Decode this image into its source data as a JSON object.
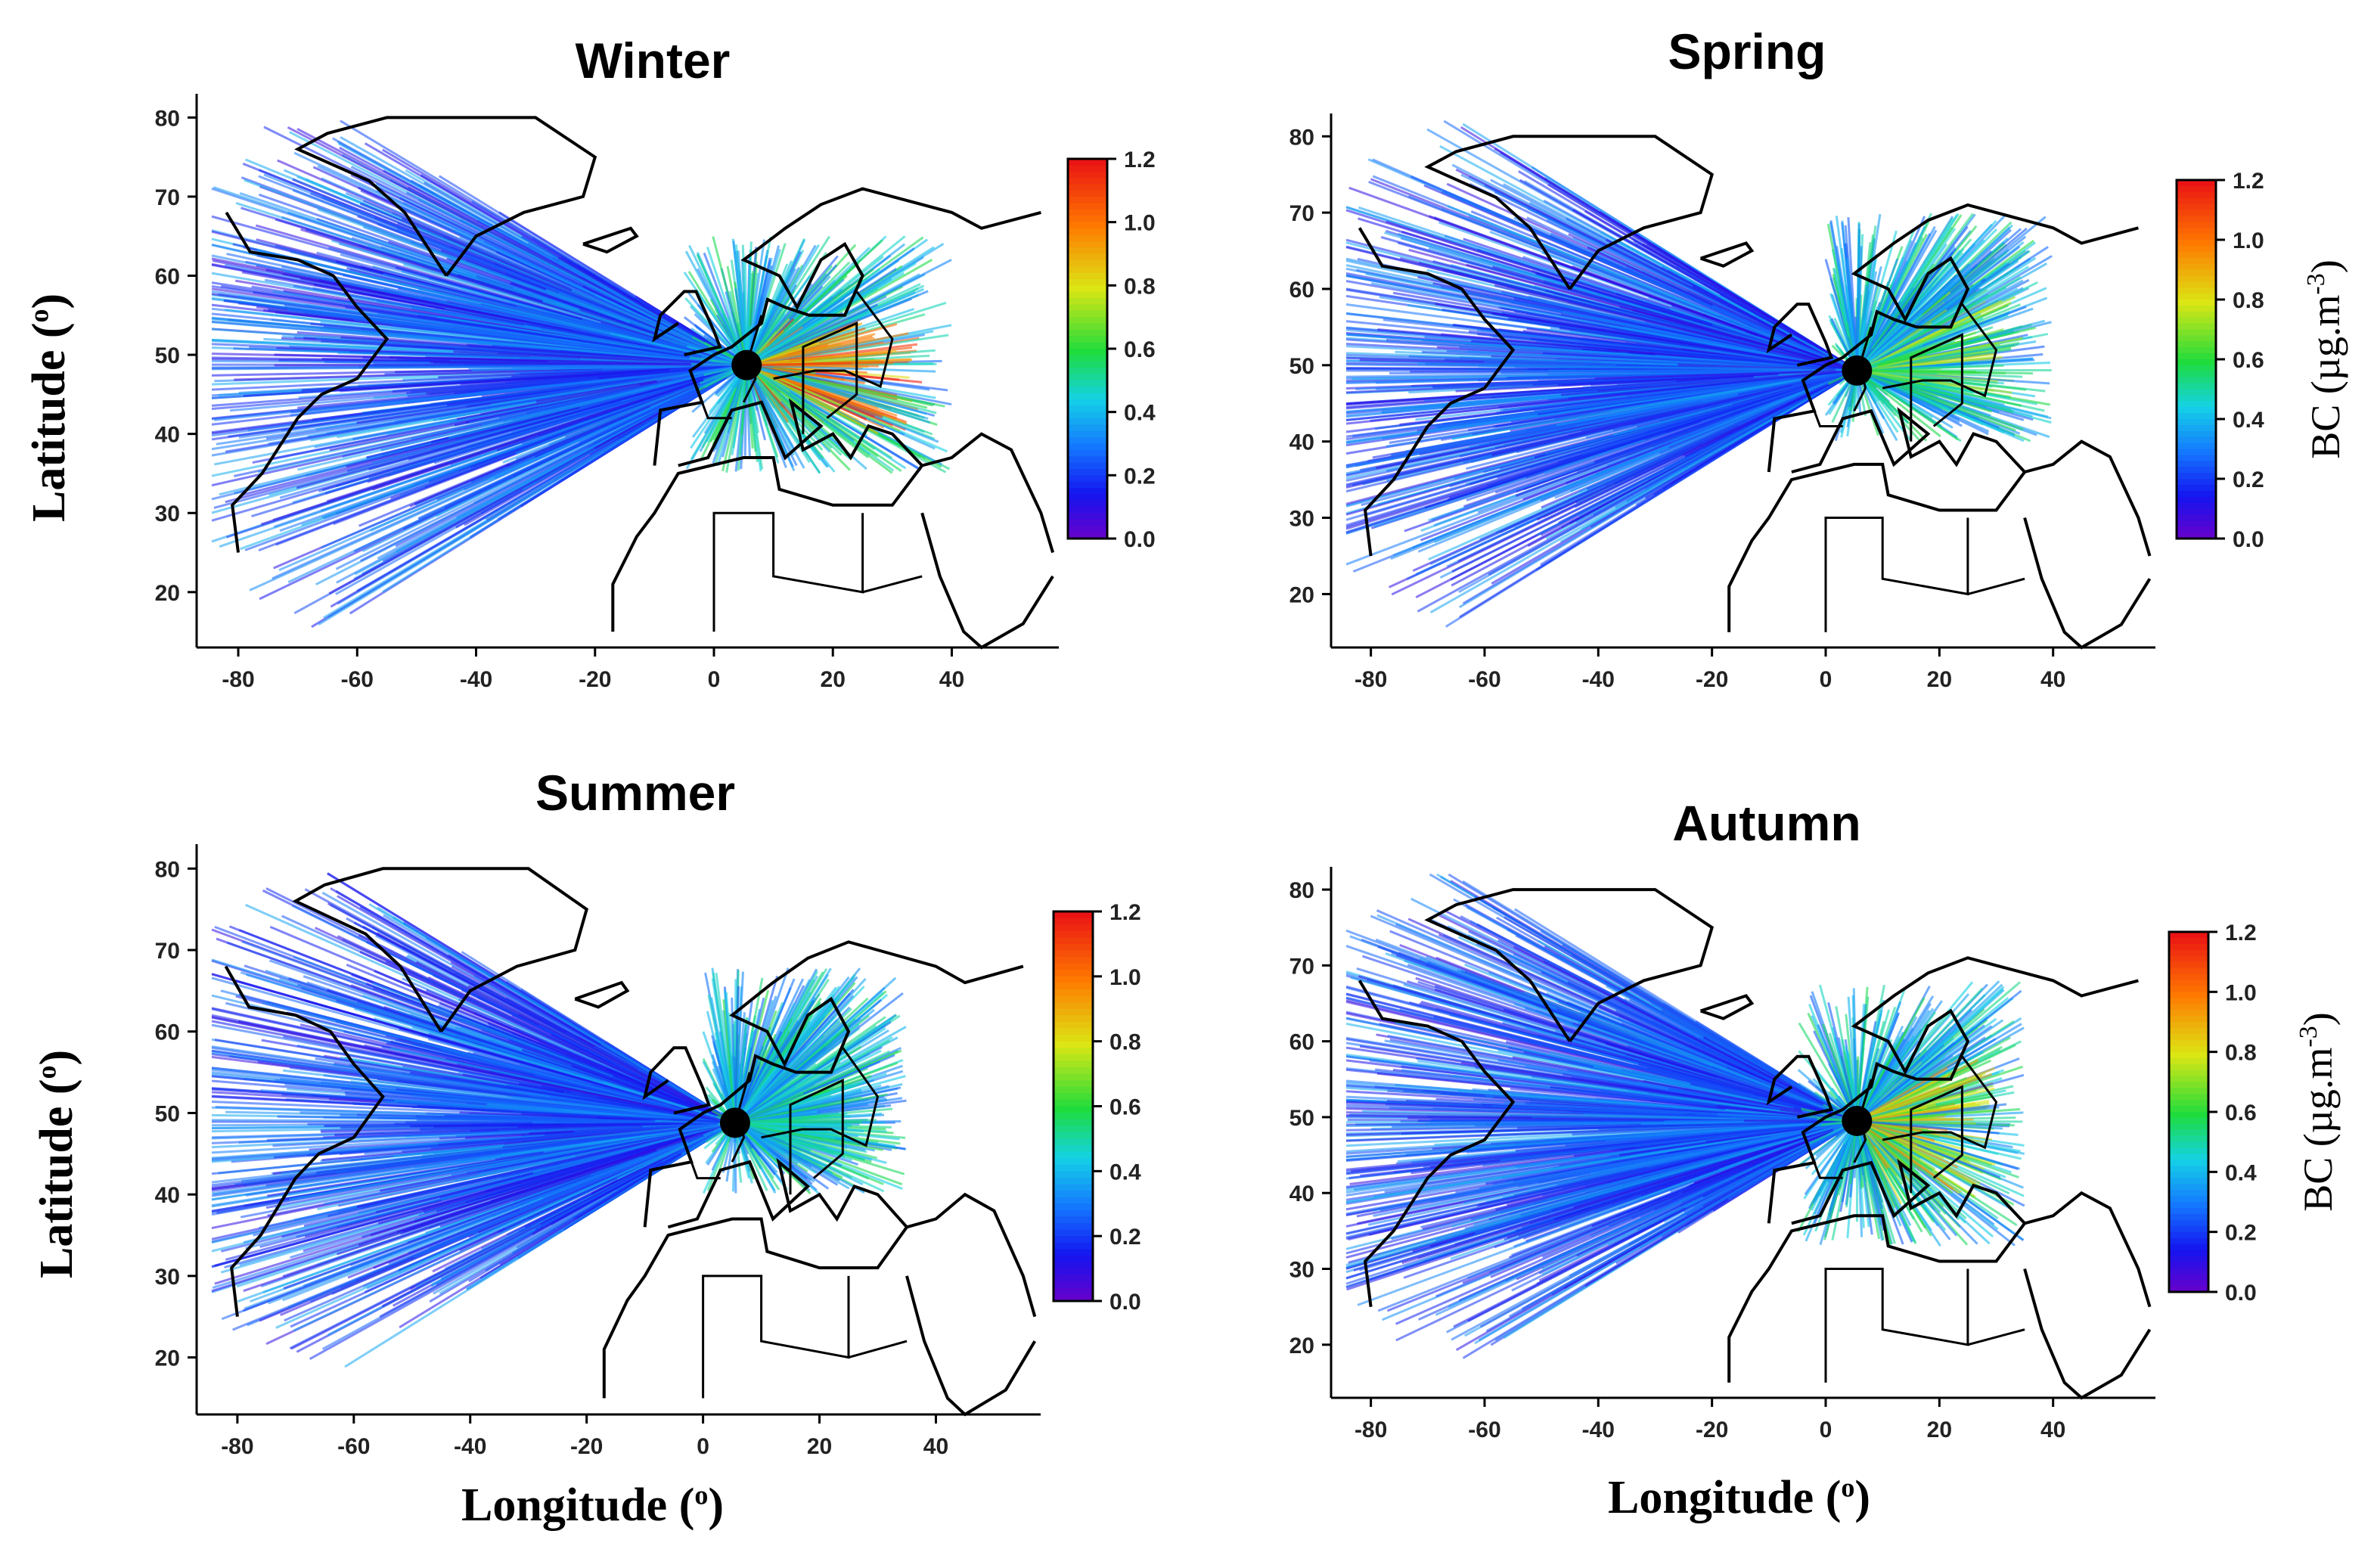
{
  "figure": {
    "xlabel": "Longitude (",
    "xlabel_unit": "o",
    "xlabel_close": ")",
    "ylabel": "Latitude (",
    "ylabel_unit": "o",
    "ylabel_close": ")",
    "colorbar_label": "BC (µg.m",
    "colorbar_exp": "-3",
    "colorbar_close": ")"
  },
  "chart_data": [
    {
      "type": "heatmap",
      "title": "Winter",
      "x_ticks": [
        -80,
        -60,
        -40,
        -20,
        0,
        20,
        40
      ],
      "y_ticks": [
        20,
        30,
        40,
        50,
        60,
        70,
        80
      ],
      "xlim": [
        -87,
        58
      ],
      "ylim": [
        13,
        83
      ],
      "colorbar": {
        "ticks": [
          "0.0",
          "0.2",
          "0.4",
          "0.6",
          "0.8",
          "1.0",
          "1.2"
        ],
        "range": [
          0,
          1.2
        ]
      },
      "site": {
        "lon": 5.5,
        "lat": 48.7
      },
      "description_values": {
        "high_bc_region_lon": [
          10,
          35
        ],
        "high_bc_region_lat": [
          40,
          55
        ],
        "max_bc": 1.2
      }
    },
    {
      "type": "heatmap",
      "title": "Spring",
      "x_ticks": [
        -80,
        -60,
        -40,
        -20,
        0,
        20,
        40
      ],
      "y_ticks": [
        20,
        30,
        40,
        50,
        60,
        70,
        80
      ],
      "xlim": [
        -87,
        58
      ],
      "ylim": [
        13,
        83
      ],
      "colorbar": {
        "ticks": [
          "0.0",
          "0.2",
          "0.4",
          "0.6",
          "0.8",
          "1.0",
          "1.2"
        ],
        "range": [
          0,
          1.2
        ]
      },
      "site": {
        "lon": 5.5,
        "lat": 49.3
      },
      "description_values": {
        "high_bc_region_lon": [
          15,
          35
        ],
        "high_bc_region_lat": [
          45,
          60
        ],
        "max_bc": 0.8
      }
    },
    {
      "type": "heatmap",
      "title": "Summer",
      "x_ticks": [
        -80,
        -60,
        -40,
        -20,
        0,
        20,
        40
      ],
      "y_ticks": [
        20,
        30,
        40,
        50,
        60,
        70,
        80
      ],
      "xlim": [
        -87,
        58
      ],
      "ylim": [
        13,
        83
      ],
      "colorbar": {
        "ticks": [
          "0.0",
          "0.2",
          "0.4",
          "0.6",
          "0.8",
          "1.0",
          "1.2"
        ],
        "range": [
          0,
          1.2
        ]
      },
      "site": {
        "lon": 5.5,
        "lat": 48.8
      },
      "description_values": {
        "high_bc_region_lon": [
          15,
          30
        ],
        "high_bc_region_lat": [
          45,
          58
        ],
        "max_bc": 0.6
      }
    },
    {
      "type": "heatmap",
      "title": "Autumn",
      "x_ticks": [
        -80,
        -60,
        -40,
        -20,
        0,
        20,
        40
      ],
      "y_ticks": [
        20,
        30,
        40,
        50,
        60,
        70,
        80
      ],
      "xlim": [
        -87,
        58
      ],
      "ylim": [
        13,
        83
      ],
      "colorbar": {
        "ticks": [
          "0.0",
          "0.2",
          "0.4",
          "0.6",
          "0.8",
          "1.0",
          "1.2"
        ],
        "range": [
          0,
          1.2
        ]
      },
      "site": {
        "lon": 5.5,
        "lat": 49.5
      },
      "description_values": {
        "high_bc_region_lon": [
          10,
          30
        ],
        "high_bc_region_lat": [
          38,
          58
        ],
        "max_bc": 1.0
      }
    }
  ]
}
